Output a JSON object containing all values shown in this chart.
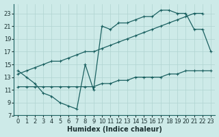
{
  "xlabel": "Humidex (Indice chaleur)",
  "bg_color": "#cdeae8",
  "grid_color": "#b0d4d0",
  "line_color": "#1a6060",
  "xlim": [
    -0.5,
    23.5
  ],
  "ylim": [
    7,
    24.5
  ],
  "yticks": [
    7,
    9,
    11,
    13,
    15,
    17,
    19,
    21,
    23
  ],
  "xticks": [
    0,
    1,
    2,
    3,
    4,
    5,
    6,
    7,
    8,
    9,
    10,
    11,
    12,
    13,
    14,
    15,
    16,
    17,
    18,
    19,
    20,
    21,
    22,
    23
  ],
  "line1_x": [
    0,
    1,
    2,
    3,
    4,
    5,
    6,
    7,
    8,
    9,
    10,
    11,
    12,
    13,
    14,
    15,
    16,
    17,
    18,
    19,
    20,
    21,
    22,
    23
  ],
  "line1_y": [
    14,
    13,
    12,
    10.5,
    10,
    9,
    8.5,
    8,
    15,
    11,
    21,
    20.5,
    21.5,
    21.5,
    22,
    22.5,
    22.5,
    23.5,
    23.5,
    23,
    23,
    20.5,
    20.5,
    17
  ],
  "line2_x": [
    0,
    1,
    2,
    3,
    4,
    5,
    6,
    7,
    8,
    9,
    10,
    11,
    12,
    13,
    14,
    15,
    16,
    17,
    18,
    19,
    20,
    21,
    22
  ],
  "line2_y": [
    13.5,
    14.0,
    14.5,
    15.0,
    15.5,
    15.5,
    16.0,
    16.5,
    17.0,
    17.0,
    17.5,
    18.0,
    18.5,
    19.0,
    19.5,
    20.0,
    20.5,
    21.0,
    21.5,
    22.0,
    22.5,
    23.0,
    23.0
  ],
  "line3_x": [
    0,
    1,
    2,
    3,
    4,
    5,
    6,
    7,
    8,
    9,
    10,
    11,
    12,
    13,
    14,
    15,
    16,
    17,
    18,
    19,
    20,
    21,
    22,
    23
  ],
  "line3_y": [
    11.5,
    11.5,
    11.5,
    11.5,
    11.5,
    11.5,
    11.5,
    11.5,
    11.5,
    11.5,
    12.0,
    12.0,
    12.5,
    12.5,
    13.0,
    13.0,
    13.0,
    13.0,
    13.5,
    13.5,
    14.0,
    14.0,
    14.0,
    14.0
  ],
  "xlabel_fontsize": 7,
  "tick_labelsize": 6
}
